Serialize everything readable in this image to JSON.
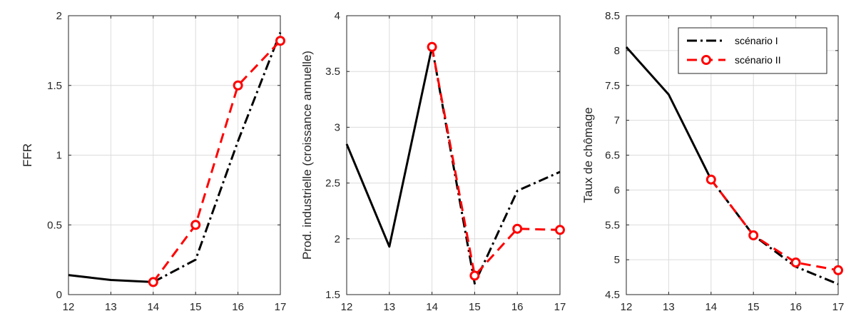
{
  "chart_data": [
    {
      "type": "line",
      "ylabel": "FFR",
      "xlim": [
        12,
        17
      ],
      "ylim": [
        0,
        2
      ],
      "x_ticks": [
        12,
        13,
        14,
        15,
        16,
        17
      ],
      "y_ticks": [
        0,
        0.5,
        1,
        1.5,
        2
      ],
      "grid": true,
      "series": [
        {
          "x": [
            12,
            13,
            14
          ],
          "y": [
            0.14,
            0.105,
            0.09
          ],
          "color": "#000000",
          "style": "solid"
        },
        {
          "x": [
            14,
            15,
            16,
            17
          ],
          "y": [
            0.09,
            0.25,
            1.1,
            1.88
          ],
          "color": "#000000",
          "style": "dashdot"
        },
        {
          "x": [
            14,
            15,
            16,
            17
          ],
          "y": [
            0.09,
            0.5,
            1.5,
            1.82
          ],
          "color": "#ff0000",
          "style": "dashed",
          "marker": "circle"
        }
      ]
    },
    {
      "type": "line",
      "ylabel": "Prod. industrielle (croissance annuelle)",
      "xlim": [
        12,
        17
      ],
      "ylim": [
        1.5,
        4
      ],
      "x_ticks": [
        12,
        13,
        14,
        15,
        16,
        17
      ],
      "y_ticks": [
        1.5,
        2,
        2.5,
        3,
        3.5,
        4
      ],
      "grid": true,
      "series": [
        {
          "x": [
            12,
            13,
            14
          ],
          "y": [
            2.85,
            1.93,
            3.72
          ],
          "color": "#000000",
          "style": "solid"
        },
        {
          "x": [
            14,
            15,
            16,
            17
          ],
          "y": [
            3.72,
            1.6,
            2.43,
            2.6
          ],
          "color": "#000000",
          "style": "dashdot"
        },
        {
          "x": [
            14,
            15,
            16,
            17
          ],
          "y": [
            3.72,
            1.67,
            2.09,
            2.08
          ],
          "color": "#ff0000",
          "style": "dashed",
          "marker": "circle"
        }
      ]
    },
    {
      "type": "line",
      "ylabel": "Taux de chômage",
      "xlim": [
        12,
        17
      ],
      "ylim": [
        4.5,
        8.5
      ],
      "x_ticks": [
        12,
        13,
        14,
        15,
        16,
        17
      ],
      "y_ticks": [
        4.5,
        5,
        5.5,
        6,
        6.5,
        7,
        7.5,
        8,
        8.5
      ],
      "grid": true,
      "legend_position": "top-right",
      "legend": [
        {
          "label": "scénario I",
          "color": "#000000",
          "style": "dashdot"
        },
        {
          "label": "scénario II",
          "color": "#ff0000",
          "style": "dashed",
          "marker": "circle"
        }
      ],
      "series": [
        {
          "x": [
            12,
            13,
            14
          ],
          "y": [
            8.05,
            7.37,
            6.15
          ],
          "color": "#000000",
          "style": "solid"
        },
        {
          "x": [
            14,
            15,
            16,
            17
          ],
          "y": [
            6.15,
            5.35,
            4.9,
            4.65
          ],
          "color": "#000000",
          "style": "dashdot"
        },
        {
          "x": [
            14,
            15,
            16,
            17
          ],
          "y": [
            6.15,
            5.35,
            4.96,
            4.85
          ],
          "color": "#ff0000",
          "style": "dashed",
          "marker": "circle"
        }
      ]
    }
  ]
}
